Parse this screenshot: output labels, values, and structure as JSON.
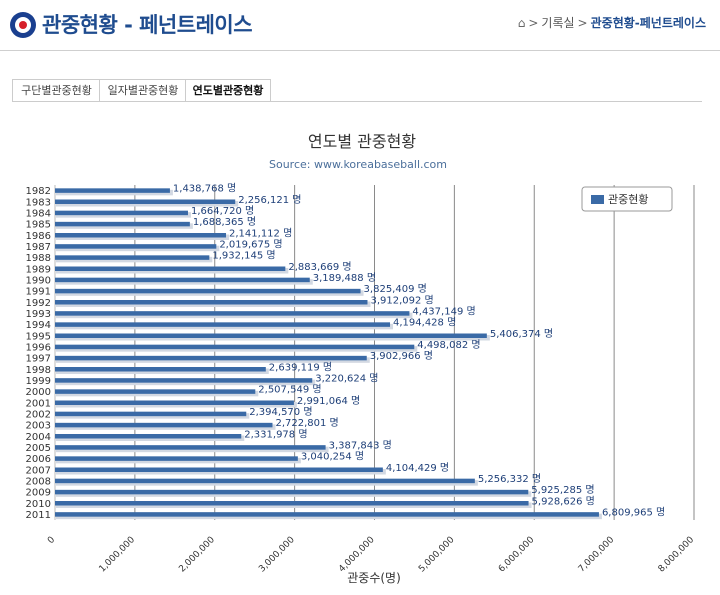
{
  "header": {
    "title": "관중현황 - 페넌트레이스",
    "breadcrumb": [
      "기록실",
      "관중현황-페넌트레이스"
    ]
  },
  "tabs": [
    {
      "label": "구단별관중현황",
      "active": false
    },
    {
      "label": "일자별관중현황",
      "active": false
    },
    {
      "label": "연도별관중현황",
      "active": true
    }
  ],
  "colors": {
    "bar": "#3a6aa6",
    "title": "#1f4c8f",
    "data_label": "#1e3f78"
  },
  "chart_data": {
    "type": "bar",
    "orientation": "horizontal",
    "title": "연도별 관중현황",
    "subtitle": "Source: www.koreabaseball.com",
    "xlabel": "관중수(명)",
    "ylabel": "",
    "xlim": [
      0,
      8000000
    ],
    "xticks": [
      "0",
      "1,000,000",
      "2,000,000",
      "3,000,000",
      "4,000,000",
      "5,000,000",
      "6,000,000",
      "7,000,000",
      "8,000,000"
    ],
    "grid": true,
    "legend_position": "top-right",
    "value_suffix": " 명",
    "categories": [
      "1982",
      "1983",
      "1984",
      "1985",
      "1986",
      "1987",
      "1988",
      "1989",
      "1990",
      "1991",
      "1992",
      "1993",
      "1994",
      "1995",
      "1996",
      "1997",
      "1998",
      "1999",
      "2000",
      "2001",
      "2002",
      "2003",
      "2004",
      "2005",
      "2006",
      "2007",
      "2008",
      "2009",
      "2010",
      "2011"
    ],
    "series": [
      {
        "name": "관중현황",
        "values": [
          1438768,
          2256121,
          1664720,
          1688365,
          2141112,
          2019675,
          1932145,
          2883669,
          3189488,
          3825409,
          3912092,
          4437149,
          4194428,
          5406374,
          4498082,
          3902966,
          2639119,
          3220624,
          2507549,
          2991064,
          2394570,
          2722801,
          2331978,
          3387843,
          3040254,
          4104429,
          5256332,
          5925285,
          5928626,
          6809965
        ]
      }
    ]
  }
}
